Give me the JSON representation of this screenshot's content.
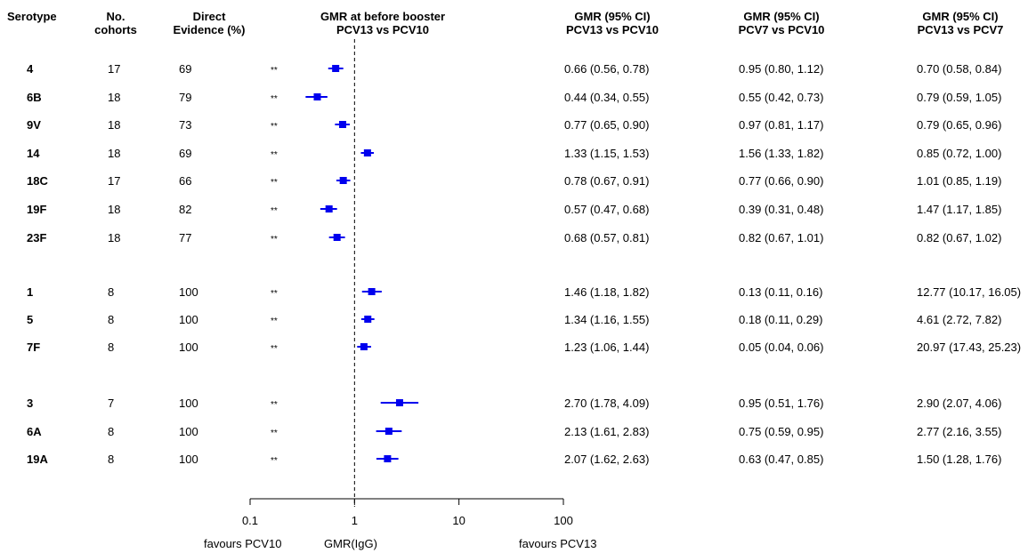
{
  "headers": {
    "serotype": "Serotype",
    "cohorts": [
      "No.",
      "cohorts"
    ],
    "evidence": [
      "Direct",
      "Evidence (%)"
    ],
    "plot": [
      "GMR at before booster",
      "PCV13 vs PCV10"
    ],
    "ci1": [
      "GMR (95% CI)",
      "PCV13 vs PCV10"
    ],
    "ci2": [
      "GMR (95% CI)",
      "PCV7 vs PCV10"
    ],
    "ci3": [
      "GMR (95% CI)",
      "PCV13 vs PCV7"
    ]
  },
  "rows": [
    {
      "serotype": "4",
      "cohorts": "17",
      "evidence": "69",
      "sig": "**",
      "ci1": "0.66 (0.56, 0.78)",
      "ci2": "0.95 (0.80, 1.12)",
      "ci3": "0.70 (0.58, 0.84)"
    },
    {
      "serotype": "6B",
      "cohorts": "18",
      "evidence": "79",
      "sig": "**",
      "ci1": "0.44 (0.34, 0.55)",
      "ci2": "0.55 (0.42, 0.73)",
      "ci3": "0.79 (0.59, 1.05)"
    },
    {
      "serotype": "9V",
      "cohorts": "18",
      "evidence": "73",
      "sig": "**",
      "ci1": "0.77 (0.65, 0.90)",
      "ci2": "0.97 (0.81, 1.17)",
      "ci3": "0.79 (0.65, 0.96)"
    },
    {
      "serotype": "14",
      "cohorts": "18",
      "evidence": "69",
      "sig": "**",
      "ci1": "1.33 (1.15, 1.53)",
      "ci2": "1.56 (1.33, 1.82)",
      "ci3": "0.85 (0.72, 1.00)"
    },
    {
      "serotype": "18C",
      "cohorts": "17",
      "evidence": "66",
      "sig": "**",
      "ci1": "0.78 (0.67, 0.91)",
      "ci2": "0.77 (0.66, 0.90)",
      "ci3": "1.01 (0.85, 1.19)"
    },
    {
      "serotype": "19F",
      "cohorts": "18",
      "evidence": "82",
      "sig": "**",
      "ci1": "0.57 (0.47, 0.68)",
      "ci2": "0.39 (0.31, 0.48)",
      "ci3": "1.47 (1.17, 1.85)"
    },
    {
      "serotype": "23F",
      "cohorts": "18",
      "evidence": "77",
      "sig": "**",
      "ci1": "0.68 (0.57, 0.81)",
      "ci2": "0.82 (0.67, 1.01)",
      "ci3": "0.82 (0.67, 1.02)"
    },
    {
      "serotype": "1",
      "cohorts": "8",
      "evidence": "100",
      "sig": "**",
      "ci1": "1.46 (1.18, 1.82)",
      "ci2": "0.13 (0.11, 0.16)",
      "ci3": "12.77 (10.17, 16.05)"
    },
    {
      "serotype": "5",
      "cohorts": "8",
      "evidence": "100",
      "sig": "**",
      "ci1": "1.34 (1.16, 1.55)",
      "ci2": "0.18 (0.11, 0.29)",
      "ci3": "4.61 (2.72, 7.82)"
    },
    {
      "serotype": "7F",
      "cohorts": "8",
      "evidence": "100",
      "sig": "**",
      "ci1": "1.23 (1.06, 1.44)",
      "ci2": "0.05 (0.04, 0.06)",
      "ci3": "20.97 (17.43, 25.23)"
    },
    {
      "serotype": "3",
      "cohorts": "7",
      "evidence": "100",
      "sig": "**",
      "ci1": "2.70 (1.78, 4.09)",
      "ci2": "0.95 (0.51, 1.76)",
      "ci3": "2.90 (2.07, 4.06)"
    },
    {
      "serotype": "6A",
      "cohorts": "8",
      "evidence": "100",
      "sig": "**",
      "ci1": "2.13 (1.61, 2.83)",
      "ci2": "0.75 (0.59, 0.95)",
      "ci3": "2.77 (2.16, 3.55)"
    },
    {
      "serotype": "19A",
      "cohorts": "8",
      "evidence": "100",
      "sig": "**",
      "ci1": "2.07 (1.62, 2.63)",
      "ci2": "0.63 (0.47, 0.85)",
      "ci3": "1.50 (1.28, 1.76)"
    }
  ],
  "chart_data": {
    "type": "scatter",
    "title": "GMR at before booster PCV13 vs PCV10",
    "xlabel": "GMR(IgG)",
    "x_scale": "log",
    "xlim": [
      0.1,
      100
    ],
    "reference_line": 1,
    "ticks": [
      "0.1",
      "1",
      "10",
      "100"
    ],
    "left_label": "favours PCV10",
    "right_label": "favours PCV13",
    "marker_color": "#0000ee",
    "categories": [
      "4",
      "6B",
      "9V",
      "14",
      "18C",
      "19F",
      "23F",
      "1",
      "5",
      "7F",
      "3",
      "6A",
      "19A"
    ],
    "estimates": [
      0.66,
      0.44,
      0.77,
      1.33,
      0.78,
      0.57,
      0.68,
      1.46,
      1.34,
      1.23,
      2.7,
      2.13,
      2.07
    ],
    "lower": [
      0.56,
      0.34,
      0.65,
      1.15,
      0.67,
      0.47,
      0.57,
      1.18,
      1.16,
      1.06,
      1.78,
      1.61,
      1.62
    ],
    "upper": [
      0.78,
      0.55,
      0.9,
      1.53,
      0.91,
      0.68,
      0.81,
      1.82,
      1.55,
      1.44,
      4.09,
      2.83,
      2.63
    ]
  }
}
